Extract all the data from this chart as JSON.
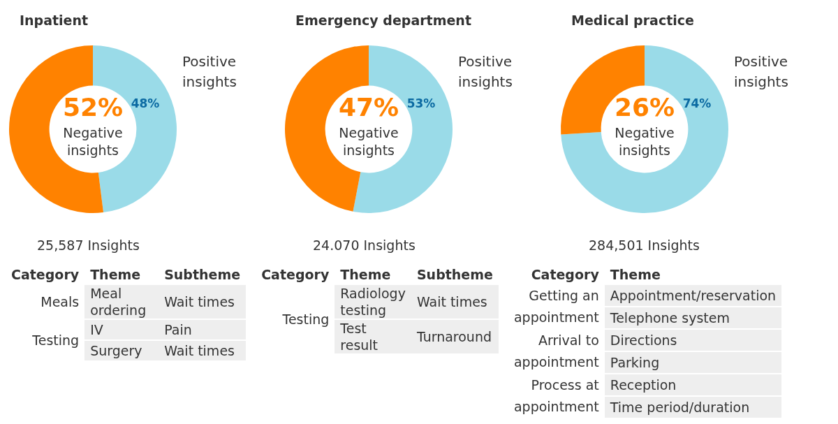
{
  "chart_data": [
    {
      "type": "donut",
      "title": "Inpatient",
      "categories": [
        "Positive insights",
        "Negative insights"
      ],
      "values": [
        48,
        52
      ],
      "colors": [
        "#9adbe8",
        "#ff8200"
      ],
      "value_labels": [
        "48%",
        "52%"
      ],
      "annotations": [
        "25,587 Insights"
      ]
    },
    {
      "type": "donut",
      "title": "Emergency department",
      "categories": [
        "Positive insights",
        "Negative insights"
      ],
      "values": [
        53,
        47
      ],
      "colors": [
        "#9adbe8",
        "#ff8200"
      ],
      "value_labels": [
        "53%",
        "47%"
      ],
      "annotations": [
        "24.070 Insights"
      ]
    },
    {
      "type": "donut",
      "title": "Medical practice",
      "categories": [
        "Positive insights",
        "Negative insights"
      ],
      "values": [
        74,
        26
      ],
      "colors": [
        "#9adbe8",
        "#ff8200"
      ],
      "value_labels": [
        "74%",
        "26%"
      ],
      "annotations": [
        "284,501 Insights"
      ]
    },
    {
      "type": "other",
      "categories": [
        "Category",
        "Theme",
        "Subtheme"
      ],
      "cell_labels": [
        [
          "Meals",
          "Meal ordering",
          "Wait times"
        ],
        [
          "Testing",
          "IV",
          "Pain"
        ],
        [
          null,
          "Surgery",
          "Wait times"
        ]
      ]
    },
    {
      "type": "other",
      "categories": [
        "Category",
        "Theme",
        "Subtheme"
      ],
      "cell_labels": [
        [
          "Testing",
          "Radiology testing",
          "Wait times"
        ],
        [
          null,
          "Test result",
          "Turnaround"
        ]
      ]
    },
    {
      "type": "other",
      "categories": [
        "Category",
        "Theme"
      ],
      "cell_labels": [
        [
          "Getting an appointment",
          "Appointment/reservation"
        ],
        [
          null,
          "Telephone system"
        ],
        [
          "Arrival to appointment",
          "Directions"
        ],
        [
          null,
          "Parking"
        ],
        [
          "Process at appointment",
          "Reception"
        ],
        [
          null,
          "Time period/duration"
        ]
      ]
    }
  ]
}
